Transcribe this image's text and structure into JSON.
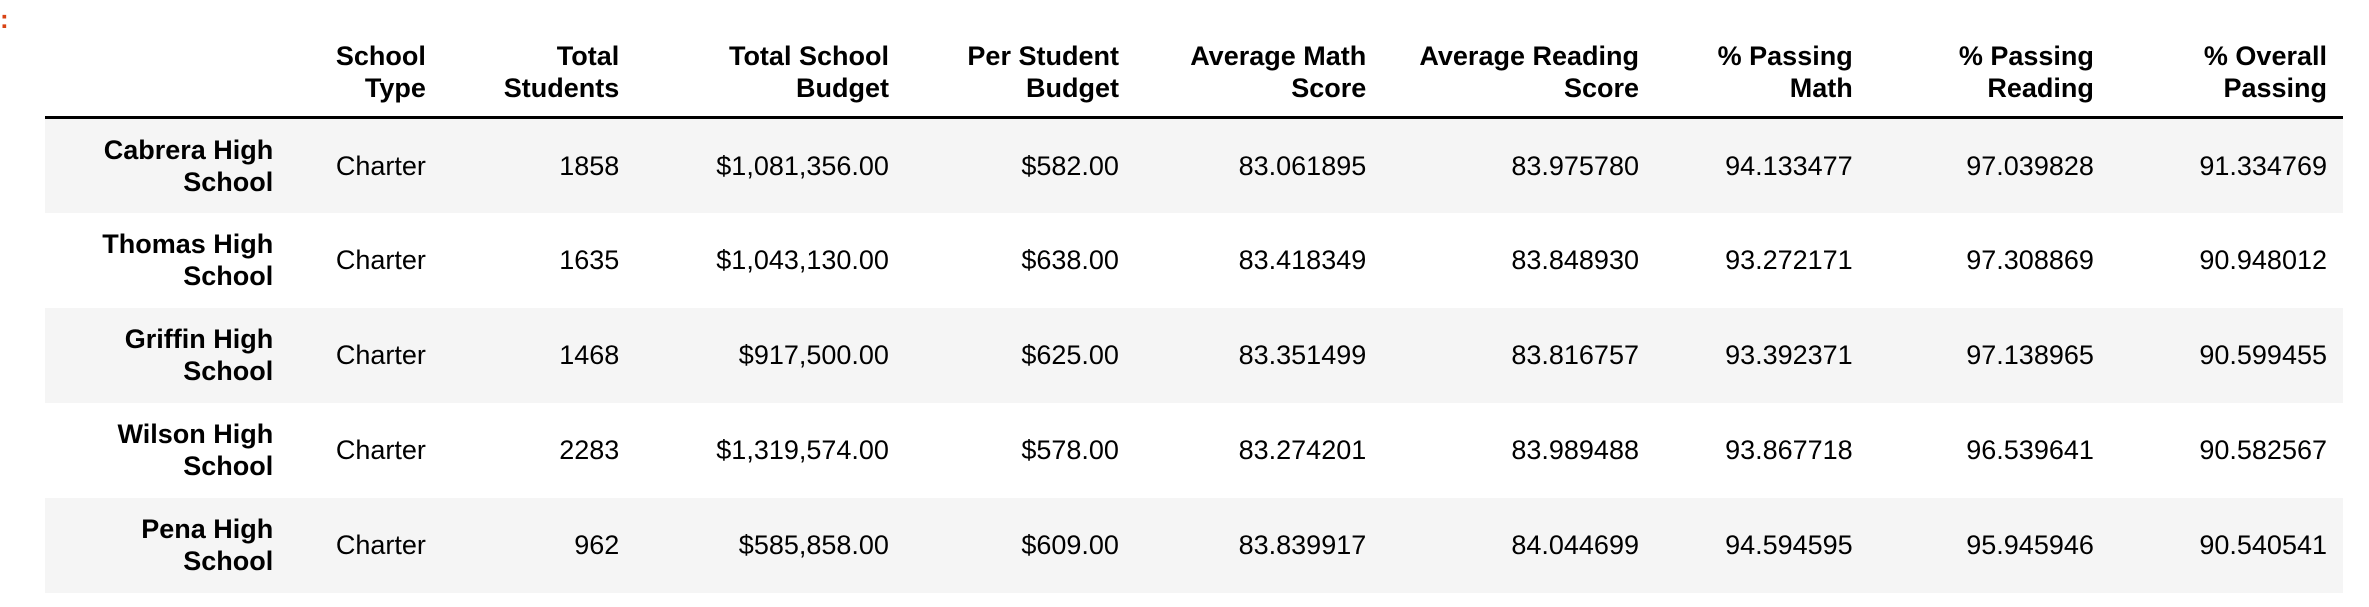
{
  "prompt_marker": ":",
  "table": {
    "columns": [
      "",
      "School Type",
      "Total Students",
      "Total School Budget",
      "Per Student Budget",
      "Average Math Score",
      "Average Reading Score",
      "% Passing Math",
      "% Passing Reading",
      "% Overall Passing"
    ],
    "rows": [
      {
        "name": "Cabrera High School",
        "cells": [
          "Charter",
          "1858",
          "$1,081,356.00",
          "$582.00",
          "83.061895",
          "83.975780",
          "94.133477",
          "97.039828",
          "91.334769"
        ]
      },
      {
        "name": "Thomas High School",
        "cells": [
          "Charter",
          "1635",
          "$1,043,130.00",
          "$638.00",
          "83.418349",
          "83.848930",
          "93.272171",
          "97.308869",
          "90.948012"
        ]
      },
      {
        "name": "Griffin High School",
        "cells": [
          "Charter",
          "1468",
          "$917,500.00",
          "$625.00",
          "83.351499",
          "83.816757",
          "93.392371",
          "97.138965",
          "90.599455"
        ]
      },
      {
        "name": "Wilson High School",
        "cells": [
          "Charter",
          "2283",
          "$1,319,574.00",
          "$578.00",
          "83.274201",
          "83.989488",
          "93.867718",
          "96.539641",
          "90.582567"
        ]
      },
      {
        "name": "Pena High School",
        "cells": [
          "Charter",
          "962",
          "$585,858.00",
          "$609.00",
          "83.839917",
          "84.044699",
          "94.594595",
          "95.945946",
          "90.540541"
        ]
      }
    ]
  }
}
